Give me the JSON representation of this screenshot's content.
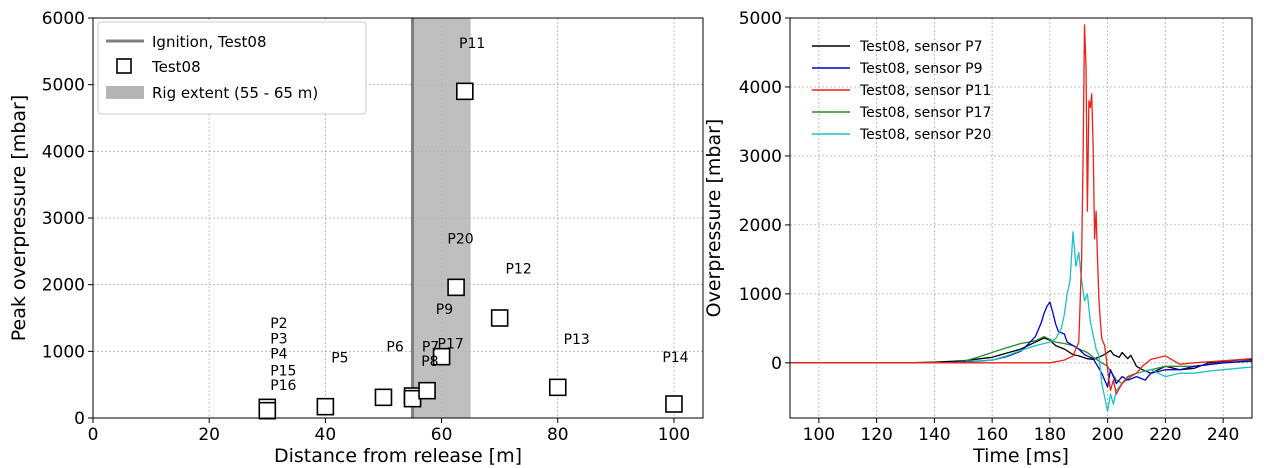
{
  "chart_data": [
    {
      "type": "scatter",
      "xlabel": "Distance from release [m]",
      "ylabel": "Peak overpressure [mbar]",
      "xlim": [
        0,
        105
      ],
      "ylim": [
        0,
        6000
      ],
      "xticks": [
        0,
        20,
        40,
        60,
        80,
        100
      ],
      "yticks": [
        0,
        1000,
        2000,
        3000,
        4000,
        5000,
        6000
      ],
      "xtick_labels": [
        "0",
        "20",
        "40",
        "60",
        "80",
        "100"
      ],
      "ytick_labels": [
        "0",
        "1000",
        "2000",
        "3000",
        "4000",
        "5000",
        "6000"
      ],
      "grid": true,
      "legend_position": "top-left",
      "legend": [
        "Ignition, Test08",
        "Test08",
        "Rig extent (55 - 65 m)"
      ],
      "ignition_x": 55,
      "rig_extent": [
        55,
        65
      ],
      "series": [
        {
          "name": "Test08",
          "points": [
            {
              "x": 30,
              "y": 160
            },
            {
              "x": 30,
              "y": 110
            },
            {
              "x": 40,
              "y": 170
            },
            {
              "x": 50,
              "y": 310
            },
            {
              "x": 55,
              "y": 330
            },
            {
              "x": 55,
              "y": 290
            },
            {
              "x": 57.5,
              "y": 410
            },
            {
              "x": 60,
              "y": 920
            },
            {
              "x": 62.5,
              "y": 1960
            },
            {
              "x": 64,
              "y": 4900
            },
            {
              "x": 70,
              "y": 1500
            },
            {
              "x": 80,
              "y": 460
            },
            {
              "x": 100,
              "y": 210
            }
          ]
        }
      ],
      "annotations": [
        {
          "text": "P11",
          "x": 63,
          "y": 5550
        },
        {
          "text": "P20",
          "x": 61,
          "y": 2620
        },
        {
          "text": "P12",
          "x": 71,
          "y": 2170
        },
        {
          "text": "P9",
          "x": 59,
          "y": 1560
        },
        {
          "text": "P13",
          "x": 81,
          "y": 1110
        },
        {
          "text": "P17",
          "x": 59.3,
          "y": 1040
        },
        {
          "text": "P7",
          "x": 56.6,
          "y": 1000
        },
        {
          "text": "P6",
          "x": 50.5,
          "y": 1000
        },
        {
          "text": "P8",
          "x": 56.5,
          "y": 780
        },
        {
          "text": "P5",
          "x": 41,
          "y": 830
        },
        {
          "text": "P14",
          "x": 98,
          "y": 840
        },
        {
          "text": "P2",
          "x": 30.5,
          "y": 1350
        },
        {
          "text": "P3",
          "x": 30.5,
          "y": 1120
        },
        {
          "text": "P4",
          "x": 30.5,
          "y": 890
        },
        {
          "text": "P15",
          "x": 30.5,
          "y": 640
        },
        {
          "text": "P16",
          "x": 30.5,
          "y": 420
        }
      ]
    },
    {
      "type": "line",
      "xlabel": "Time [ms]",
      "ylabel": "Overpressure [mbar]",
      "xlim": [
        90,
        250
      ],
      "ylim": [
        -800,
        5000
      ],
      "xticks": [
        100,
        120,
        140,
        160,
        180,
        200,
        220,
        240
      ],
      "yticks": [
        0,
        1000,
        2000,
        3000,
        4000,
        5000
      ],
      "xtick_labels": [
        "100",
        "120",
        "140",
        "160",
        "180",
        "200",
        "220",
        "240"
      ],
      "ytick_labels": [
        "0",
        "1000",
        "2000",
        "3000",
        "4000",
        "5000"
      ],
      "grid": true,
      "legend_position": "top-left",
      "series": [
        {
          "name": "Test08, sensor P7",
          "color": "#000000",
          "x": [
            90,
            130,
            140,
            150,
            160,
            170,
            175,
            178,
            180,
            182,
            185,
            188,
            190,
            193,
            195,
            198,
            200,
            201,
            202,
            204,
            205,
            207,
            208,
            210,
            212,
            215,
            220,
            225,
            230,
            235,
            240,
            245,
            250
          ],
          "y": [
            0,
            0,
            10,
            30,
            80,
            200,
            300,
            360,
            330,
            250,
            200,
            120,
            100,
            60,
            50,
            100,
            150,
            180,
            120,
            80,
            150,
            60,
            110,
            -50,
            -100,
            -150,
            -50,
            -100,
            -80,
            0,
            20,
            40,
            50
          ]
        },
        {
          "name": "Test08, sensor P9",
          "color": "#0000cc",
          "x": [
            90,
            140,
            150,
            160,
            165,
            170,
            172,
            175,
            177,
            178,
            179,
            180,
            181,
            182,
            183,
            185,
            186,
            188,
            190,
            192,
            195,
            198,
            200,
            201,
            203,
            205,
            207,
            210,
            213,
            215,
            220,
            225,
            230,
            240,
            250
          ],
          "y": [
            0,
            0,
            10,
            40,
            90,
            170,
            250,
            380,
            580,
            720,
            820,
            880,
            730,
            560,
            450,
            420,
            300,
            250,
            200,
            120,
            60,
            -150,
            -350,
            -100,
            -300,
            -200,
            -250,
            -200,
            -250,
            -150,
            -100,
            -100,
            -50,
            0,
            30
          ]
        },
        {
          "name": "Test08, sensor P11",
          "color": "#e8211b",
          "x": [
            90,
            180,
            185,
            188,
            190,
            191,
            191.5,
            192,
            192.5,
            193,
            193.5,
            194,
            194.5,
            195,
            195.5,
            196,
            196.5,
            197,
            197.5,
            198,
            199,
            200,
            201,
            202,
            203,
            205,
            207,
            210,
            212,
            215,
            220,
            225,
            230,
            240,
            250
          ],
          "y": [
            0,
            0,
            40,
            100,
            300,
            1500,
            3000,
            4900,
            4300,
            2200,
            3800,
            3700,
            3900,
            3100,
            1800,
            2200,
            1500,
            900,
            600,
            350,
            250,
            -100,
            -400,
            -250,
            -450,
            -300,
            -200,
            -150,
            -50,
            50,
            100,
            -20,
            0,
            30,
            60
          ]
        },
        {
          "name": "Test08, sensor P17",
          "color": "#2a8a2a",
          "x": [
            90,
            145,
            150,
            155,
            160,
            165,
            170,
            175,
            178,
            180,
            182,
            185,
            188,
            190,
            193,
            195,
            198,
            200,
            203,
            205,
            208,
            210,
            215,
            220,
            230,
            240,
            250
          ],
          "y": [
            0,
            0,
            20,
            80,
            150,
            220,
            280,
            320,
            380,
            340,
            300,
            280,
            250,
            200,
            150,
            80,
            0,
            -50,
            -250,
            -300,
            -200,
            -150,
            -100,
            -50,
            -50,
            0,
            20
          ]
        },
        {
          "name": "Test08, sensor P20",
          "color": "#20c0c0",
          "x": [
            90,
            150,
            160,
            165,
            170,
            175,
            180,
            182,
            184,
            185,
            186,
            187,
            188,
            189,
            190,
            191,
            192,
            193,
            194,
            195,
            196,
            197,
            198,
            199,
            200,
            201,
            202,
            203,
            205,
            207,
            210,
            215,
            220,
            225,
            230,
            235,
            240,
            245,
            250
          ],
          "y": [
            0,
            0,
            40,
            100,
            180,
            250,
            300,
            350,
            500,
            700,
            1000,
            1200,
            1900,
            1400,
            1600,
            1200,
            900,
            1000,
            600,
            400,
            200,
            100,
            -300,
            -500,
            -700,
            -450,
            -600,
            -400,
            -300,
            -200,
            -150,
            -100,
            -200,
            -150,
            -150,
            -120,
            -100,
            -80,
            -60
          ]
        }
      ]
    }
  ]
}
